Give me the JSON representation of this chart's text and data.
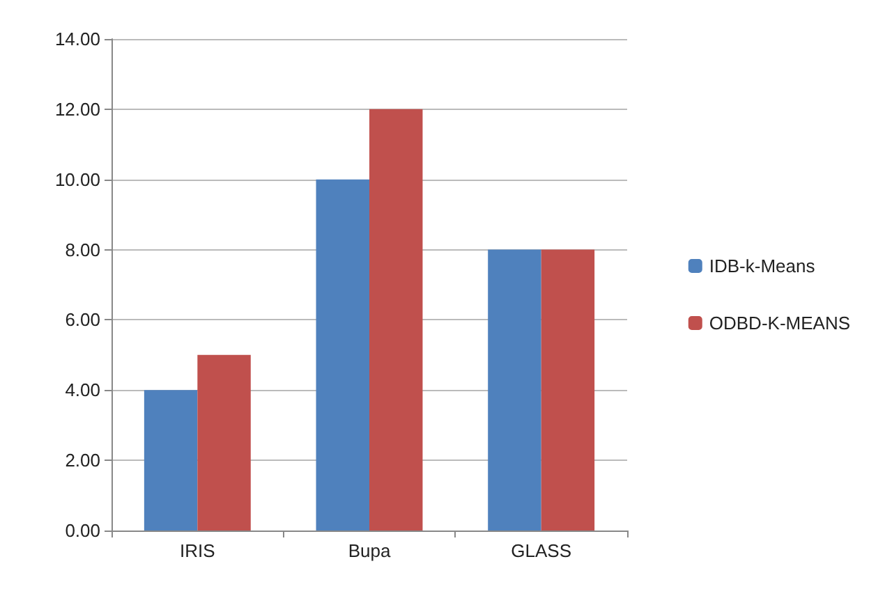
{
  "chart_data": {
    "type": "bar",
    "categories": [
      "IRIS",
      "Bupa",
      "GLASS"
    ],
    "series": [
      {
        "name": "IDB-k-Means",
        "color": "#4f81bd",
        "values": [
          4,
          10,
          8
        ]
      },
      {
        "name": "ODBD-K-MEANS",
        "color": "#c0504d",
        "values": [
          5,
          12,
          8
        ]
      }
    ],
    "ylim": [
      0,
      14
    ],
    "yticks": [
      {
        "value": 0,
        "label": "0.00"
      },
      {
        "value": 2,
        "label": "2.00"
      },
      {
        "value": 4,
        "label": "4.00"
      },
      {
        "value": 6,
        "label": "6.00"
      },
      {
        "value": 8,
        "label": "8.00"
      },
      {
        "value": 10,
        "label": "10.00"
      },
      {
        "value": 12,
        "label": "12.00"
      },
      {
        "value": 14,
        "label": "14.00"
      }
    ],
    "grid": "y",
    "legend": "right"
  }
}
